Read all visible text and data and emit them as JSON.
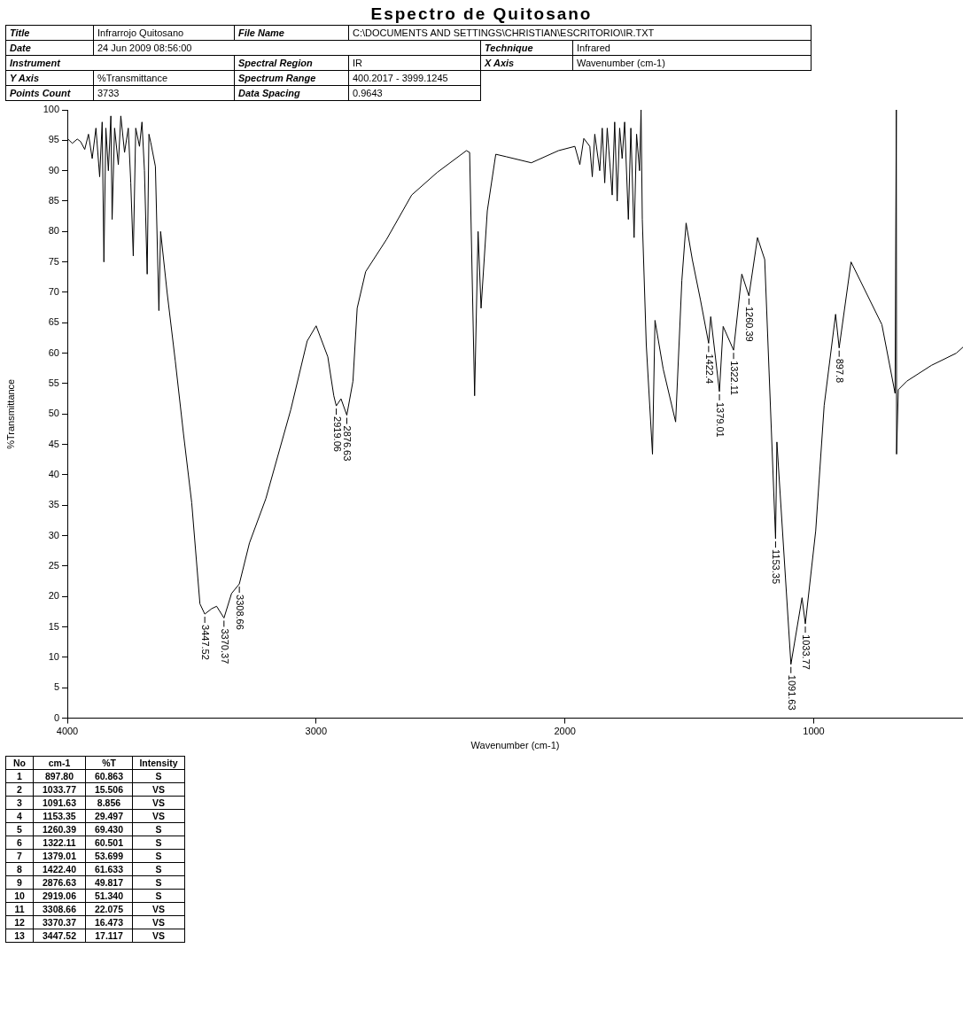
{
  "chart_data": {
    "type": "line",
    "title": "Espectro de Quitosano",
    "xlabel": "Wavenumber (cm-1)",
    "ylabel": "%Transmittance",
    "xlim": [
      4000,
      400
    ],
    "xticks": [
      4000,
      3000,
      2000,
      1000
    ],
    "ylim": [
      0,
      100
    ],
    "yticks": [
      0,
      5,
      10,
      15,
      20,
      25,
      30,
      35,
      40,
      45,
      50,
      55,
      60,
      65,
      70,
      75,
      80,
      85,
      90,
      95,
      100
    ],
    "grid": false,
    "legend": false,
    "marker": "none",
    "line_style": "solid",
    "series": [
      {
        "color": "#000000",
        "x": [
          4000,
          3980,
          3960,
          3947,
          3930,
          3915,
          3900,
          3885,
          3870,
          3860,
          3853,
          3845,
          3835,
          3825,
          3820,
          3810,
          3795,
          3785,
          3770,
          3755,
          3745,
          3735,
          3725,
          3710,
          3700,
          3690,
          3679,
          3672,
          3665,
          3646,
          3632,
          3625,
          3599,
          3566,
          3533,
          3500,
          3467,
          3447.52,
          3420,
          3400,
          3370.37,
          3340,
          3308.66,
          3268,
          3202,
          3102,
          3036,
          3000,
          2953,
          2929,
          2919.06,
          2900,
          2876.63,
          2852,
          2835,
          2801,
          2717,
          2616,
          2514,
          2396,
          2383,
          2363,
          2349,
          2337,
          2312,
          2278,
          2236,
          2135,
          2026,
          1960,
          1940,
          1924,
          1900,
          1890,
          1880,
          1860,
          1850,
          1840,
          1830,
          1810,
          1800,
          1790,
          1780,
          1770,
          1760,
          1745,
          1735,
          1722,
          1712,
          1700,
          1694,
          1689,
          1673,
          1648,
          1638,
          1605,
          1555,
          1530,
          1513,
          1488,
          1455,
          1422.4,
          1414,
          1379.01,
          1364,
          1322.11,
          1289,
          1260.39,
          1226,
          1197,
          1153.35,
          1148,
          1091.63,
          1047,
          1033.77,
          992,
          958,
          912,
          897.8,
          850,
          726,
          673,
          668,
          667,
          660,
          626,
          527,
          427,
          400
        ],
        "values": [
          95.3,
          94.5,
          95.2,
          94.8,
          93.5,
          96,
          92,
          97,
          89,
          98,
          75,
          97,
          90,
          99,
          82,
          97,
          91,
          99,
          93,
          97,
          88,
          76,
          97,
          94,
          98,
          90,
          73,
          96,
          94.7,
          90.7,
          67,
          80,
          70,
          58.7,
          46.7,
          35.4,
          18.8,
          17.117,
          18,
          18.4,
          16.473,
          20.5,
          22.075,
          28.8,
          36.1,
          50.7,
          62,
          64.5,
          59.4,
          53,
          51.34,
          52.5,
          49.817,
          55.4,
          67.4,
          73.4,
          78.7,
          86,
          89.7,
          93.3,
          93,
          53,
          80,
          67.4,
          83.4,
          92.7,
          92.3,
          91.3,
          93.3,
          94,
          91,
          95.3,
          94,
          89,
          96,
          90,
          97,
          88,
          97,
          86,
          98,
          85,
          97,
          92,
          98,
          82,
          97,
          79,
          96,
          90,
          100,
          82,
          61.4,
          43.4,
          65.4,
          57.4,
          48.7,
          72,
          81.4,
          75.4,
          68.7,
          61.633,
          66,
          53.699,
          64.4,
          60.501,
          73,
          69.43,
          79,
          75.4,
          29.497,
          45.4,
          8.856,
          19.8,
          15.506,
          30.8,
          51.4,
          66.4,
          60.863,
          75,
          64.7,
          53.4,
          100,
          43.4,
          54,
          55.4,
          58,
          60,
          61
        ]
      }
    ],
    "annotations": [
      "Title",
      "Infrarrojo Quitosano",
      "File Name",
      "C:\\DOCUMENTS AND SETTINGS\\CHRISTIAN\\ESCRITORIO\\IR.TXT",
      "Date",
      "24 Jun 2009 08:56:00",
      "Technique",
      "Infrared",
      "Instrument",
      "Spectral Region",
      "IR",
      "X Axis",
      "Wavenumber (cm-1)",
      "Y Axis",
      "%Transmittance",
      "Spectrum Range",
      "400.2017 - 3999.1245",
      "Points Count",
      "3733",
      "Data Spacing",
      "0.9643",
      "No",
      "cm-1",
      "%T",
      "Intensity",
      "1",
      "897.80",
      "60.863",
      "S",
      "2",
      "1033.77",
      "15.506",
      "VS",
      "3",
      "1091.63",
      "8.856",
      "VS",
      "4",
      "1153.35",
      "29.497",
      "VS",
      "5",
      "1260.39",
      "69.430",
      "S",
      "6",
      "1322.11",
      "60.501",
      "S",
      "7",
      "1379.01",
      "53.699",
      "S",
      "8",
      "1422.40",
      "61.633",
      "S",
      "9",
      "2876.63",
      "49.817",
      "S",
      "10",
      "2919.06",
      "51.340",
      "S",
      "11",
      "3308.66",
      "22.075",
      "VS",
      "12",
      "3370.37",
      "16.473",
      "VS",
      "13",
      "3447.52",
      "17.117",
      "VS",
      {
        "text": "897.8",
        "x": 897.8,
        "y": 60.863
      },
      {
        "text": "1033.77",
        "x": 1033.77,
        "y": 15.506
      },
      {
        "text": "1091.63",
        "x": 1091.63,
        "y": 8.856
      },
      {
        "text": "1153.35",
        "x": 1153.35,
        "y": 29.497
      },
      {
        "text": "1260.39",
        "x": 1260.39,
        "y": 69.43
      },
      {
        "text": "1322.11",
        "x": 1322.11,
        "y": 60.501
      },
      {
        "text": "1379.01",
        "x": 1379.01,
        "y": 53.699
      },
      {
        "text": "1422.4",
        "x": 1422.4,
        "y": 61.633
      },
      {
        "text": "2876.63",
        "x": 2876.63,
        "y": 49.817
      },
      {
        "text": "2919.06",
        "x": 2919.06,
        "y": 51.34
      },
      {
        "text": "3308.66",
        "x": 3308.66,
        "y": 22.075
      },
      {
        "text": "3370.37",
        "x": 3370.37,
        "y": 16.473
      },
      {
        "text": "3447.52",
        "x": 3447.52,
        "y": 17.117
      }
    ]
  }
}
